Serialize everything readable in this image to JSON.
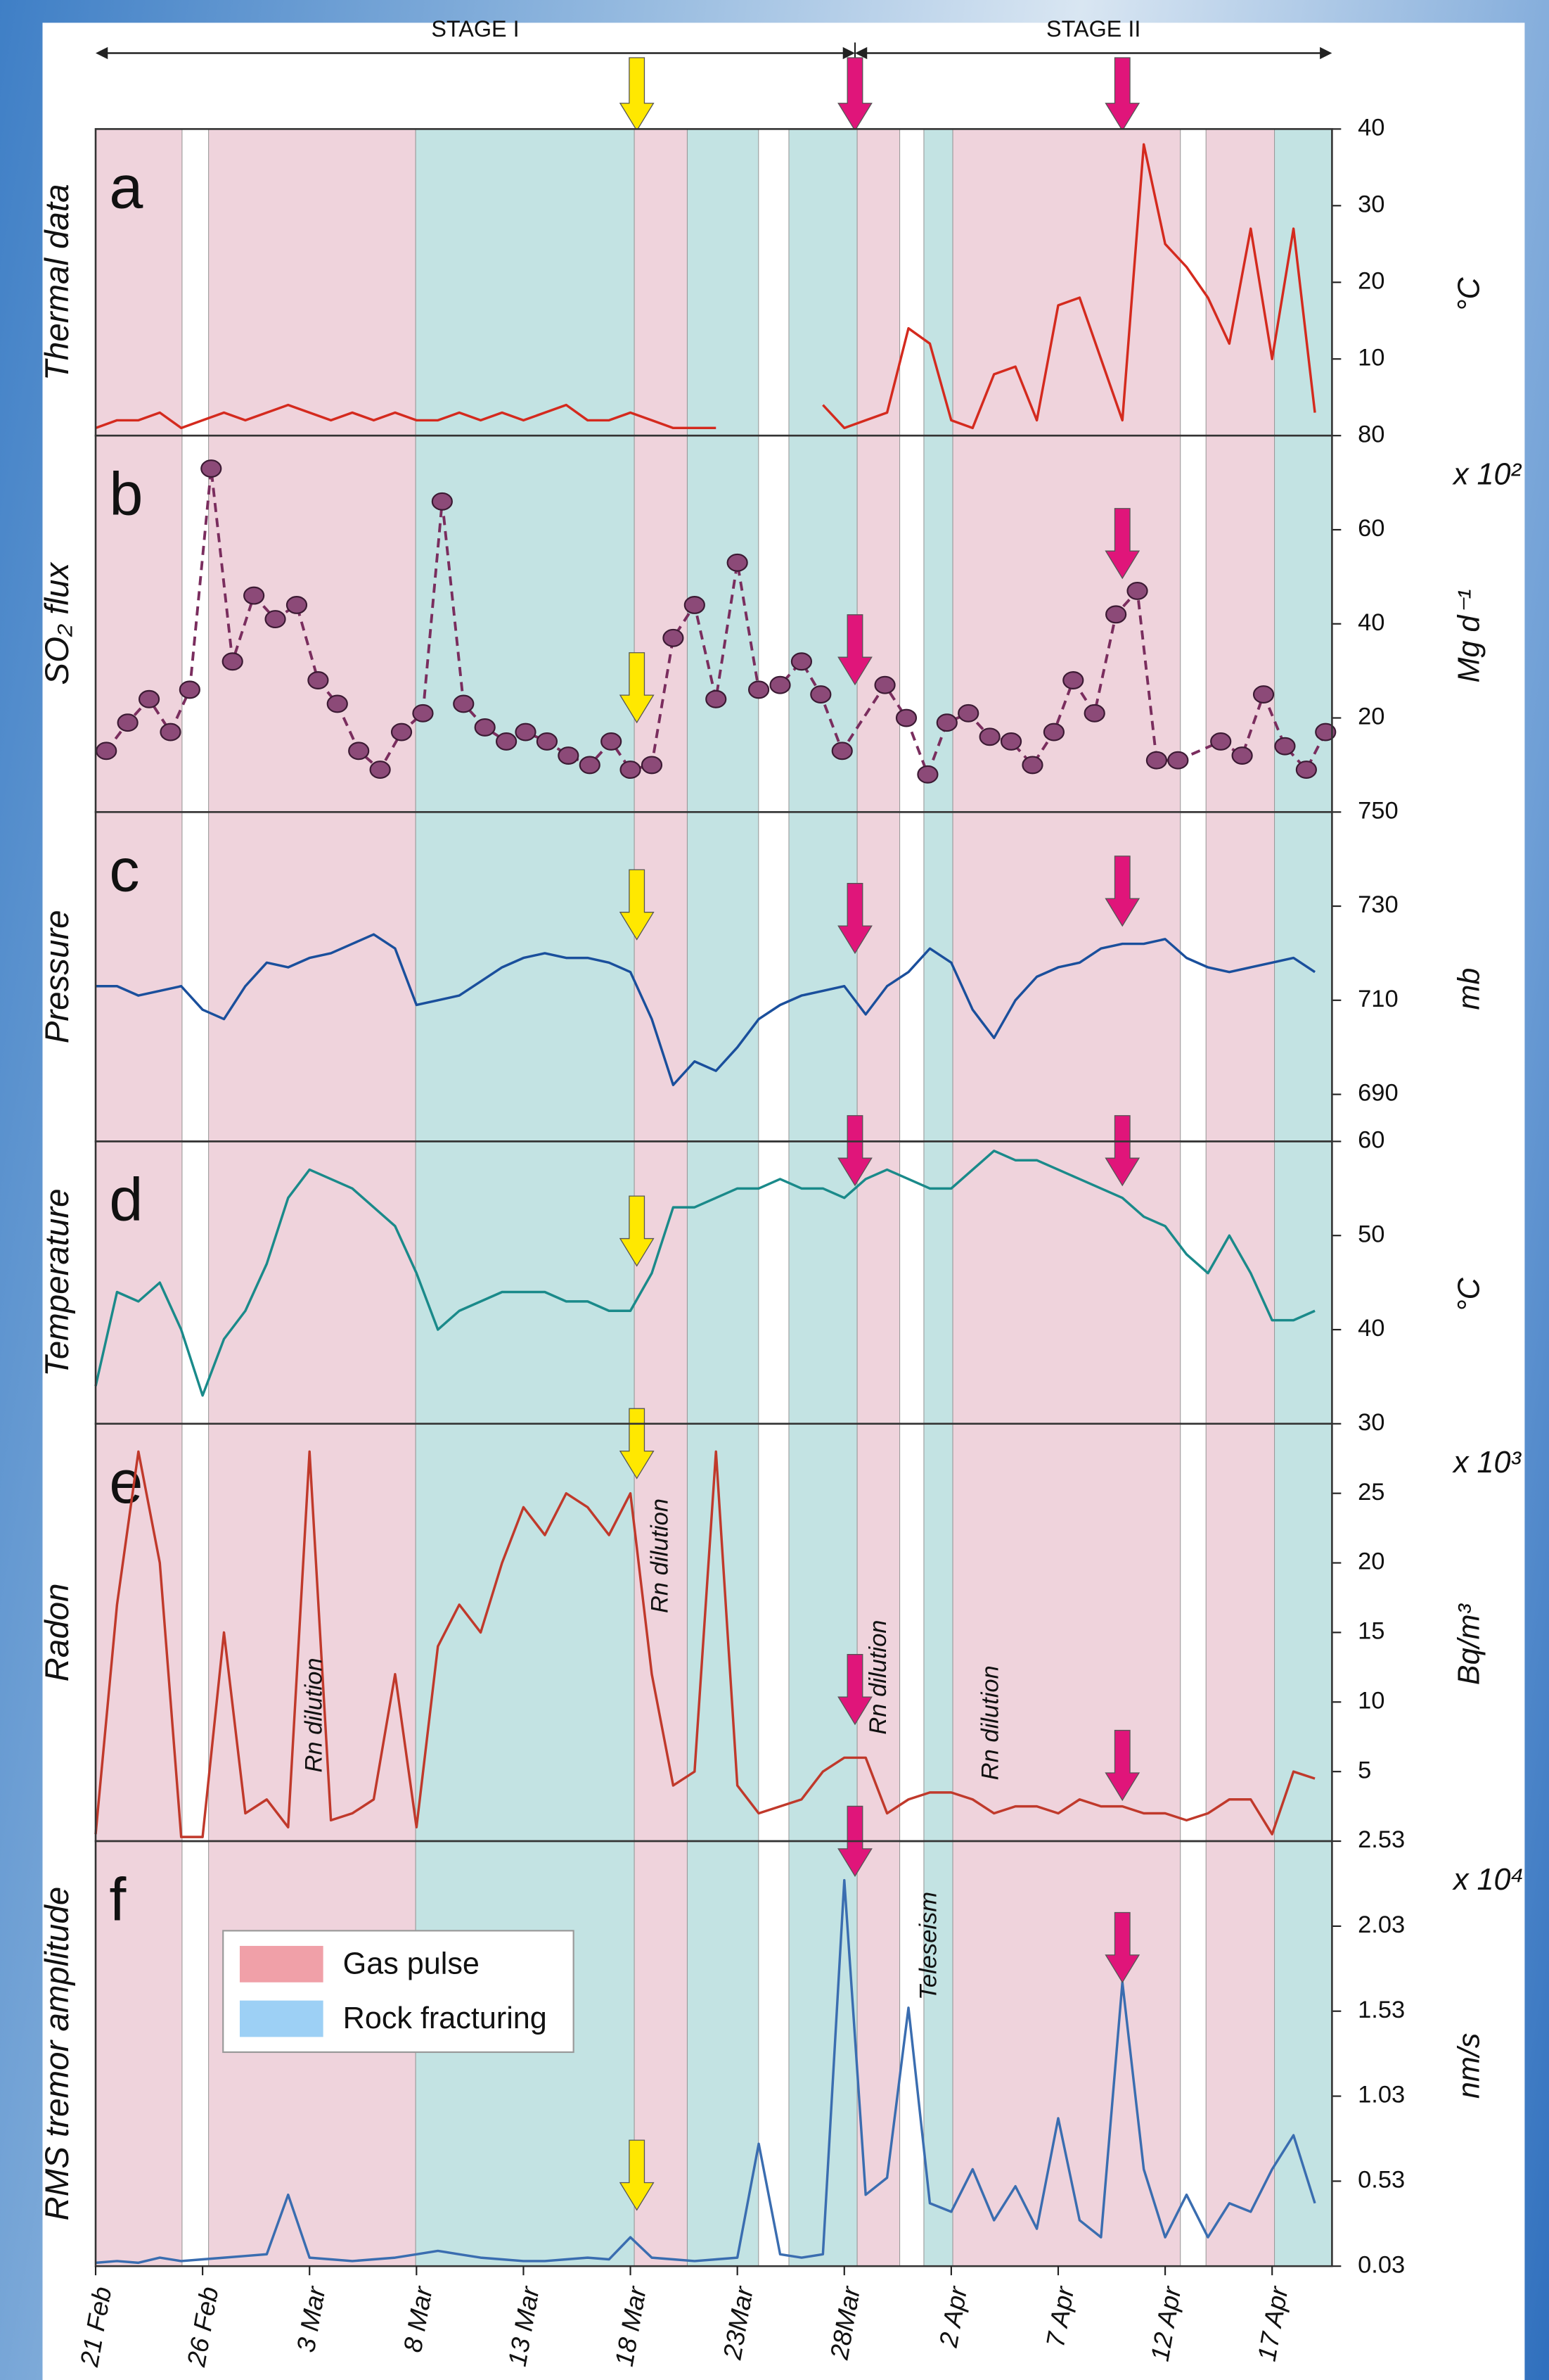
{
  "figure": {
    "stages": [
      {
        "label": "STAGE I",
        "start": 0,
        "end": 35.5
      },
      {
        "label": "STAGE II",
        "start": 35.5,
        "end": 57.8
      }
    ],
    "arrows": [
      {
        "x": 25.3,
        "color": "#ffe800"
      },
      {
        "x": 35.5,
        "color": "#e0157a"
      },
      {
        "x": 48.0,
        "color": "#e0157a"
      }
    ],
    "phases": [
      {
        "name": "Gas pulse",
        "color": "#f0a0a8",
        "band_color": "#efd3dc",
        "intervals": [
          [
            0,
            4.04
          ],
          [
            5.28,
            14.96
          ],
          [
            25.18,
            27.66
          ],
          [
            35.6,
            37.59
          ],
          [
            40.07,
            50.71
          ],
          [
            51.91,
            55.11
          ]
        ]
      },
      {
        "name": "Rock fracturing",
        "color": "#9dd0f5",
        "band_color": "#c3e3e3",
        "intervals": [
          [
            14.96,
            25.18
          ],
          [
            27.66,
            30.99
          ],
          [
            32.41,
            35.6
          ],
          [
            38.72,
            40.07
          ],
          [
            55.11,
            57.8
          ]
        ]
      }
    ]
  },
  "chart_data": [
    {
      "type": "line",
      "letter": "a",
      "ylabel": "Thermal data",
      "unit": "°C",
      "color": "#d42a1e",
      "xlim": [
        0,
        57.8
      ],
      "ylim": [
        0,
        40
      ],
      "yticks": [
        10,
        20,
        30,
        40
      ],
      "x": [
        0,
        1,
        2,
        3,
        4,
        5,
        6,
        7,
        8,
        9,
        10,
        11,
        12,
        13,
        14,
        15,
        16,
        17,
        18,
        19,
        20,
        21,
        22,
        23,
        24,
        25,
        26,
        27,
        28,
        29,
        30,
        31,
        32,
        33,
        34,
        35,
        36,
        37,
        38,
        39,
        40,
        41,
        42,
        43,
        44,
        45,
        46,
        47,
        48,
        49,
        50,
        51,
        52,
        53,
        54,
        55,
        56,
        57
      ],
      "values": [
        1,
        2,
        2,
        3,
        1,
        2,
        3,
        2,
        3,
        4,
        3,
        2,
        3,
        2,
        3,
        2,
        2,
        3,
        2,
        3,
        2,
        3,
        4,
        2,
        2,
        3,
        2,
        1,
        1,
        1,
        null,
        null,
        null,
        null,
        4,
        1,
        2,
        3,
        14,
        12,
        2,
        1,
        8,
        9,
        2,
        17,
        18,
        10,
        2,
        38,
        25,
        22,
        18,
        12,
        27,
        10,
        27,
        3
      ]
    },
    {
      "type": "line",
      "letter": "b",
      "ylabel": "SO₂ flux",
      "unit": "Mg d⁻¹",
      "multiplier": "x 10²",
      "color": "#7a2d5e",
      "marker_color": "#8c4a78",
      "dashed": true,
      "markers": true,
      "xlim": [
        0,
        57.8
      ],
      "ylim": [
        0,
        80
      ],
      "yticks": [
        20,
        40,
        60,
        80
      ],
      "x": [
        0.5,
        1.5,
        2.5,
        3.5,
        4.4,
        5.4,
        6.4,
        7.4,
        8.4,
        9.4,
        10.4,
        11.3,
        12.3,
        13.3,
        14.3,
        15.3,
        16.2,
        17.2,
        18.2,
        19.2,
        20.1,
        21.1,
        22.1,
        23.1,
        24.1,
        25.0,
        26.0,
        27.0,
        28.0,
        29.0,
        30.0,
        31.0,
        32.0,
        33.0,
        33.9,
        34.9,
        36.9,
        37.9,
        38.9,
        39.8,
        40.8,
        41.8,
        42.8,
        43.8,
        44.8,
        45.7,
        46.7,
        47.7,
        48.7,
        49.6,
        50.6,
        52.6,
        53.6,
        54.6,
        55.6,
        56.6,
        57.5
      ],
      "values": [
        13,
        19,
        24,
        17,
        26,
        73,
        32,
        46,
        41,
        44,
        28,
        23,
        13,
        9,
        17,
        21,
        66,
        23,
        18,
        15,
        17,
        15,
        12,
        10,
        15,
        9,
        10,
        37,
        44,
        24,
        53,
        26,
        27,
        32,
        25,
        13,
        27,
        20,
        8,
        19,
        21,
        16,
        15,
        10,
        17,
        28,
        21,
        42,
        47,
        11,
        11,
        15,
        12,
        25,
        14,
        9,
        17
      ]
    },
    {
      "type": "line",
      "letter": "c",
      "ylabel": "Pressure",
      "unit": "mb",
      "color": "#1a4f9c",
      "xlim": [
        0,
        57.8
      ],
      "ylim": [
        680,
        750
      ],
      "yticks": [
        690,
        710,
        730,
        750
      ],
      "x": [
        0,
        1,
        2,
        3,
        4,
        5,
        6,
        7,
        8,
        9,
        10,
        11,
        12,
        13,
        14,
        15,
        16,
        17,
        18,
        19,
        20,
        21,
        22,
        23,
        24,
        25,
        26,
        27,
        28,
        29,
        30,
        31,
        32,
        33,
        34,
        35,
        36,
        37,
        38,
        39,
        40,
        41,
        42,
        43,
        44,
        45,
        46,
        47,
        48,
        49,
        50,
        51,
        52,
        53,
        54,
        55,
        56,
        57
      ],
      "values": [
        713,
        713,
        711,
        712,
        713,
        708,
        706,
        713,
        718,
        717,
        719,
        720,
        722,
        724,
        721,
        709,
        710,
        711,
        714,
        717,
        719,
        720,
        719,
        719,
        718,
        716,
        706,
        692,
        697,
        695,
        700,
        706,
        709,
        711,
        712,
        713,
        707,
        713,
        716,
        721,
        718,
        708,
        702,
        710,
        715,
        717,
        718,
        721,
        722,
        722,
        723,
        719,
        717,
        716,
        717,
        718,
        719,
        716
      ]
    },
    {
      "type": "line",
      "letter": "d",
      "ylabel": "Temperature",
      "unit": "°C",
      "color": "#1a8a8a",
      "xlim": [
        0,
        57.8
      ],
      "ylim": [
        30,
        60
      ],
      "yticks": [
        40,
        50,
        60
      ],
      "x": [
        0,
        1,
        2,
        3,
        4,
        5,
        6,
        7,
        8,
        9,
        10,
        11,
        12,
        13,
        14,
        15,
        16,
        17,
        18,
        19,
        20,
        21,
        22,
        23,
        24,
        25,
        26,
        27,
        28,
        29,
        30,
        31,
        32,
        33,
        34,
        35,
        36,
        37,
        38,
        39,
        40,
        41,
        42,
        43,
        44,
        45,
        46,
        47,
        48,
        49,
        50,
        51,
        52,
        53,
        54,
        55,
        56,
        57
      ],
      "values": [
        34,
        44,
        43,
        45,
        40,
        33,
        39,
        42,
        47,
        54,
        57,
        56,
        55,
        53,
        51,
        46,
        40,
        42,
        43,
        44,
        44,
        44,
        43,
        43,
        42,
        42,
        46,
        53,
        53,
        54,
        55,
        55,
        56,
        55,
        55,
        54,
        56,
        57,
        56,
        55,
        55,
        57,
        59,
        58,
        58,
        57,
        56,
        55,
        54,
        52,
        51,
        48,
        46,
        50,
        46,
        41,
        41,
        42
      ]
    },
    {
      "type": "line",
      "letter": "e",
      "ylabel": "Radon",
      "unit": "Bq/m³",
      "multiplier": "x 10³",
      "color": "#c0392b",
      "xlim": [
        0,
        57.8
      ],
      "ylim": [
        0,
        30
      ],
      "yticks": [
        5,
        10,
        15,
        20,
        25,
        30
      ],
      "annotations": [
        "Rn dilution",
        "Rn dilution",
        "Rn dilution",
        "Rn dilution"
      ],
      "x": [
        0,
        1,
        2,
        3,
        4,
        5,
        6,
        7,
        8,
        9,
        10,
        11,
        12,
        13,
        14,
        15,
        16,
        17,
        18,
        19,
        20,
        21,
        22,
        23,
        24,
        25,
        26,
        27,
        28,
        29,
        30,
        31,
        32,
        33,
        34,
        35,
        36,
        37,
        38,
        39,
        40,
        41,
        42,
        43,
        44,
        45,
        46,
        47,
        48,
        49,
        50,
        51,
        52,
        53,
        54,
        55,
        56,
        57
      ],
      "values": [
        0.5,
        17,
        28,
        20,
        0.3,
        0.3,
        15,
        2,
        3,
        1,
        28,
        1.5,
        2,
        3,
        12,
        1,
        14,
        17,
        15,
        20,
        24,
        22,
        25,
        24,
        22,
        25,
        12,
        4,
        5,
        28,
        4,
        2,
        2.5,
        3,
        5,
        6,
        6,
        2,
        3,
        3.5,
        3.5,
        3,
        2,
        2.5,
        2.5,
        2,
        3,
        2.5,
        2.5,
        2,
        2,
        1.5,
        2,
        3,
        3,
        0.5,
        5,
        4.5
      ]
    },
    {
      "type": "line",
      "letter": "f",
      "ylabel": "RMS tremor amplitude",
      "unit": "nm/s",
      "multiplier": "x 10⁴",
      "color": "#3a6db0",
      "xlim": [
        0,
        57.8
      ],
      "ylim": [
        0.03,
        2.53
      ],
      "yticks": [
        0.03,
        0.53,
        1.03,
        1.53,
        2.03,
        2.53
      ],
      "annotations": [
        "Teleseism"
      ],
      "xticks": [
        {
          "value": 0,
          "label": "21 Feb"
        },
        {
          "value": 5,
          "label": "26 Feb"
        },
        {
          "value": 10,
          "label": "3 Mar"
        },
        {
          "value": 15,
          "label": "8 Mar"
        },
        {
          "value": 20,
          "label": "13 Mar"
        },
        {
          "value": 25,
          "label": "18 Mar"
        },
        {
          "value": 30,
          "label": "23Mar"
        },
        {
          "value": 35,
          "label": "28Mar"
        },
        {
          "value": 40,
          "label": "2 Apr"
        },
        {
          "value": 45,
          "label": "7 Apr"
        },
        {
          "value": 50,
          "label": "12 Apr"
        },
        {
          "value": 55,
          "label": "17 Apr"
        }
      ],
      "x": [
        0,
        1,
        2,
        3,
        4,
        5,
        6,
        7,
        8,
        9,
        10,
        11,
        12,
        13,
        14,
        15,
        16,
        17,
        18,
        19,
        20,
        21,
        22,
        23,
        24,
        25,
        26,
        27,
        28,
        29,
        30,
        31,
        32,
        33,
        34,
        35,
        36,
        37,
        38,
        39,
        40,
        41,
        42,
        43,
        44,
        45,
        46,
        47,
        48,
        49,
        50,
        51,
        52,
        53,
        54,
        55,
        56,
        57
      ],
      "values": [
        0.05,
        0.06,
        0.05,
        0.08,
        0.06,
        0.07,
        0.08,
        0.09,
        0.1,
        0.45,
        0.08,
        0.07,
        0.06,
        0.07,
        0.08,
        0.1,
        0.12,
        0.1,
        0.08,
        0.07,
        0.06,
        0.06,
        0.07,
        0.08,
        0.07,
        0.2,
        0.08,
        0.07,
        0.06,
        0.07,
        0.08,
        0.75,
        0.1,
        0.08,
        0.1,
        2.3,
        0.45,
        0.55,
        1.55,
        0.4,
        0.35,
        0.6,
        0.3,
        0.5,
        0.25,
        0.9,
        0.3,
        0.2,
        1.7,
        0.6,
        0.2,
        0.45,
        0.2,
        0.4,
        0.35,
        0.6,
        0.8,
        0.4
      ]
    }
  ]
}
